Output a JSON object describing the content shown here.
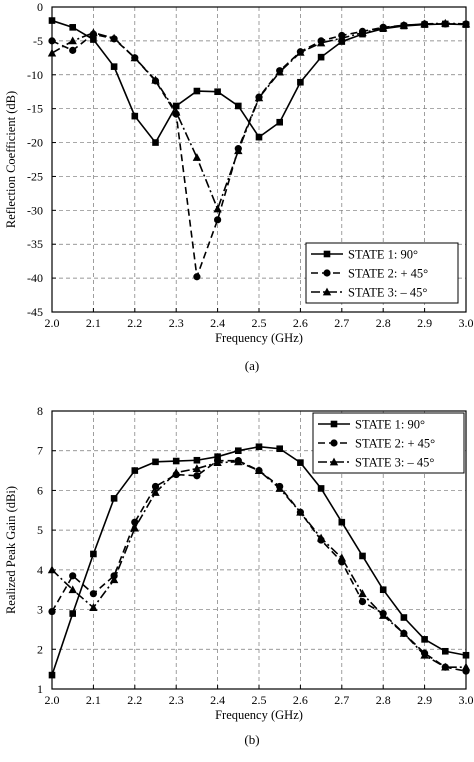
{
  "chart_data": [
    {
      "type": "line",
      "panel": "top",
      "caption": "(a)",
      "xlabel": "Frequency (GHz)",
      "ylabel": "Reflection Coefficient (dB)",
      "xlim": [
        2.0,
        3.0
      ],
      "ylim": [
        -45,
        0
      ],
      "xticks": [
        2.0,
        2.1,
        2.2,
        2.3,
        2.4,
        2.5,
        2.6,
        2.7,
        2.8,
        2.9,
        3.0
      ],
      "xtick_labels": [
        "2.0",
        "2.1",
        "2.2",
        "2.3",
        "2.4",
        "2.5",
        "2.6",
        "2.7",
        "2.8",
        "2.9",
        "3.0"
      ],
      "yticks": [
        0,
        -5,
        -10,
        -15,
        -20,
        -25,
        -30,
        -35,
        -40,
        -45
      ],
      "ytick_labels": [
        "0",
        "-5",
        "-10",
        "-15",
        "-20",
        "-25",
        "-30",
        "-35",
        "-40",
        "-45"
      ],
      "grid": true,
      "legend_position": "bottom-right",
      "series": [
        {
          "name": "STATE 1:    90°",
          "marker": "square",
          "dash": "solid",
          "x": [
            2.0,
            2.05,
            2.1,
            2.15,
            2.2,
            2.25,
            2.3,
            2.35,
            2.4,
            2.45,
            2.5,
            2.55,
            2.6,
            2.65,
            2.7,
            2.75,
            2.8,
            2.85,
            2.9,
            2.95,
            3.0
          ],
          "y": [
            -2.0,
            -3.0,
            -4.8,
            -8.8,
            -16.1,
            -20.0,
            -14.6,
            -12.4,
            -12.5,
            -14.6,
            -19.2,
            -17.0,
            -11.1,
            -7.4,
            -5.1,
            -4.0,
            -3.2,
            -2.8,
            -2.6,
            -2.5,
            -2.6
          ]
        },
        {
          "name": "STATE 2: + 45°",
          "marker": "circle",
          "dash": "dashed",
          "x": [
            2.0,
            2.05,
            2.1,
            2.15,
            2.2,
            2.25,
            2.3,
            2.35,
            2.4,
            2.45,
            2.5,
            2.55,
            2.6,
            2.65,
            2.7,
            2.75,
            2.8,
            2.85,
            2.9,
            2.95,
            3.0
          ],
          "y": [
            -5.0,
            -6.4,
            -4.0,
            -4.7,
            -7.5,
            -10.9,
            -15.8,
            -39.8,
            -31.4,
            -20.9,
            -13.3,
            -9.4,
            -6.6,
            -5.0,
            -4.2,
            -3.6,
            -3.0,
            -2.7,
            -2.5,
            -2.5,
            -2.5
          ]
        },
        {
          "name": "STATE 3: – 45°",
          "marker": "triangle",
          "dash": "dashdot",
          "x": [
            2.0,
            2.05,
            2.1,
            2.15,
            2.2,
            2.25,
            2.3,
            2.35,
            2.4,
            2.45,
            2.5,
            2.55,
            2.6,
            2.65,
            2.7,
            2.75,
            2.8,
            2.85,
            2.9,
            2.95,
            3.0
          ],
          "y": [
            -6.8,
            -5.0,
            -3.8,
            -4.6,
            -7.5,
            -10.8,
            -15.5,
            -22.2,
            -29.8,
            -21.2,
            -13.4,
            -9.6,
            -6.7,
            -5.3,
            -4.6,
            -3.8,
            -3.1,
            -2.7,
            -2.5,
            -2.4,
            -2.5
          ]
        }
      ]
    },
    {
      "type": "line",
      "panel": "bottom",
      "caption": "(b)",
      "xlabel": "Frequency (GHz)",
      "ylabel": "Realized Peak Gain (dBi)",
      "xlim": [
        2.0,
        3.0
      ],
      "ylim": [
        1,
        8
      ],
      "xticks": [
        2.0,
        2.1,
        2.2,
        2.3,
        2.4,
        2.5,
        2.6,
        2.7,
        2.8,
        2.9,
        3.0
      ],
      "xtick_labels": [
        "2.0",
        "2.1",
        "2.2",
        "2.3",
        "2.4",
        "2.5",
        "2.6",
        "2.7",
        "2.8",
        "2.9",
        "3.0"
      ],
      "yticks": [
        1,
        2,
        3,
        4,
        5,
        6,
        7,
        8
      ],
      "ytick_labels": [
        "1",
        "2",
        "3",
        "4",
        "5",
        "6",
        "7",
        "8"
      ],
      "grid": true,
      "legend_position": "top-right",
      "series": [
        {
          "name": "STATE 1:    90°",
          "marker": "square",
          "dash": "solid",
          "x": [
            2.0,
            2.05,
            2.1,
            2.15,
            2.2,
            2.25,
            2.3,
            2.35,
            2.4,
            2.45,
            2.5,
            2.55,
            2.6,
            2.65,
            2.7,
            2.75,
            2.8,
            2.85,
            2.9,
            2.95,
            3.0
          ],
          "y": [
            1.35,
            2.9,
            4.4,
            5.8,
            6.5,
            6.72,
            6.74,
            6.76,
            6.85,
            7.0,
            7.1,
            7.05,
            6.7,
            6.05,
            5.2,
            4.35,
            3.5,
            2.8,
            2.25,
            1.95,
            1.85
          ]
        },
        {
          "name": "STATE 2: + 45°",
          "marker": "circle",
          "dash": "dashed",
          "x": [
            2.0,
            2.05,
            2.1,
            2.15,
            2.2,
            2.25,
            2.3,
            2.35,
            2.4,
            2.45,
            2.5,
            2.55,
            2.6,
            2.65,
            2.7,
            2.75,
            2.8,
            2.85,
            2.9,
            2.95,
            3.0
          ],
          "y": [
            2.95,
            3.85,
            3.4,
            3.85,
            5.2,
            6.1,
            6.4,
            6.37,
            6.75,
            6.75,
            6.5,
            6.1,
            5.45,
            4.75,
            4.2,
            3.2,
            2.9,
            2.4,
            1.9,
            1.55,
            1.45
          ]
        },
        {
          "name": "STATE 3: – 45°",
          "marker": "triangle",
          "dash": "dashdot",
          "x": [
            2.0,
            2.05,
            2.1,
            2.15,
            2.2,
            2.25,
            2.3,
            2.35,
            2.4,
            2.45,
            2.5,
            2.55,
            2.6,
            2.65,
            2.7,
            2.75,
            2.8,
            2.85,
            2.9,
            2.95,
            3.0
          ],
          "y": [
            4.0,
            3.5,
            3.05,
            3.75,
            5.05,
            5.95,
            6.45,
            6.55,
            6.7,
            6.72,
            6.5,
            6.05,
            5.45,
            4.8,
            4.3,
            3.4,
            2.85,
            2.4,
            1.85,
            1.55,
            1.55
          ]
        }
      ]
    }
  ]
}
